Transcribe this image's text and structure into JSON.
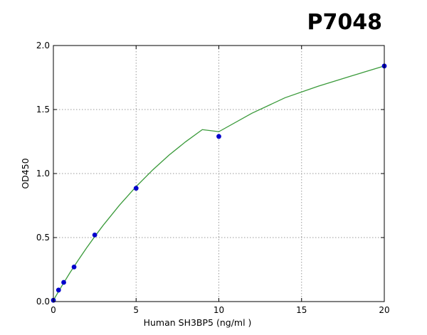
{
  "badge": "P7048",
  "chart_data": {
    "type": "scatter",
    "title": "",
    "xlabel": "Human SH3BP5 (ng/ml  )",
    "ylabel": "OD450",
    "xlim": [
      0,
      20
    ],
    "ylim": [
      0,
      2.0
    ],
    "x_ticks": [
      0,
      5,
      10,
      15,
      20
    ],
    "x_tick_labels": [
      "0",
      "5",
      "10",
      "15",
      "20"
    ],
    "y_ticks": [
      0,
      0.5,
      1.0,
      1.5,
      2.0
    ],
    "y_tick_labels": [
      "0.0",
      "0.5",
      "1.0",
      "1.5",
      "2.0"
    ],
    "grid": true,
    "legend": "none",
    "series": [
      {
        "type": "scatter",
        "color": "#0000cc",
        "x": [
          0,
          0.3125,
          0.625,
          1.25,
          2.5,
          5,
          10,
          20
        ],
        "y": [
          0.01,
          0.09,
          0.15,
          0.27,
          0.52,
          0.885,
          1.29,
          1.84
        ]
      },
      {
        "type": "line",
        "color": "#3a9a3a",
        "x": [
          0,
          0.5,
          1,
          1.5,
          2,
          2.5,
          3,
          4,
          5,
          6,
          7,
          8,
          9,
          10,
          12,
          14,
          16,
          18,
          20
        ],
        "y": [
          0.01,
          0.12,
          0.225,
          0.323,
          0.418,
          0.508,
          0.594,
          0.754,
          0.898,
          1.028,
          1.145,
          1.249,
          1.343,
          1.327,
          1.471,
          1.592,
          1.682,
          1.762,
          1.84
        ]
      }
    ]
  }
}
